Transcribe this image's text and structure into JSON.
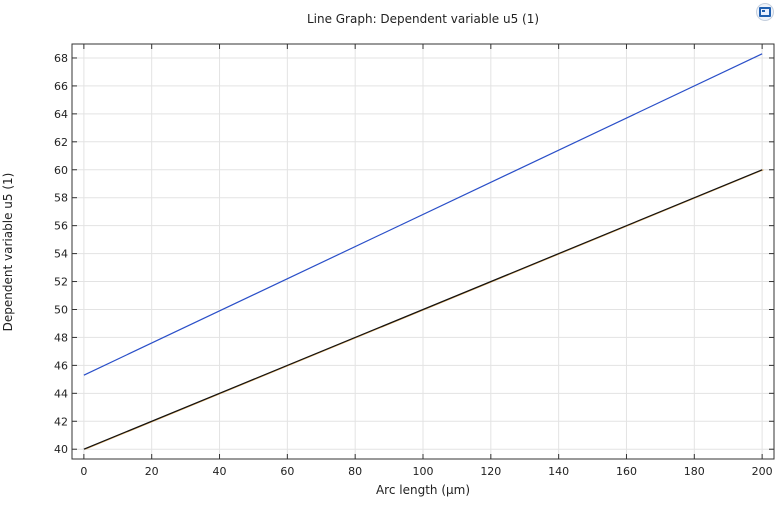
{
  "chart_data": {
    "type": "line",
    "title": "Line Graph: Dependent variable u5 (1)",
    "xlabel": "Arc length (µm)",
    "ylabel": "Dependent variable u5 (1)",
    "xlim": [
      -3.5,
      203.5
    ],
    "ylim": [
      39.3,
      69.0
    ],
    "xticks": [
      0,
      20,
      40,
      60,
      80,
      100,
      120,
      140,
      160,
      180,
      200
    ],
    "yticks": [
      40,
      42,
      44,
      46,
      48,
      50,
      52,
      54,
      56,
      58,
      60,
      62,
      64,
      66,
      68
    ],
    "grid": true,
    "series": [
      {
        "color": "#2a4fc8",
        "x": [
          0,
          200
        ],
        "y": [
          45.3,
          68.3
        ]
      },
      {
        "color": "#d8a050",
        "x": [
          0,
          200
        ],
        "y": [
          40.0,
          60.0
        ]
      },
      {
        "color": "#111111",
        "x": [
          0,
          200
        ],
        "y": [
          40.0,
          60.0
        ]
      }
    ]
  },
  "toolbar": {
    "fit_icon": "zoom-extents-icon"
  }
}
